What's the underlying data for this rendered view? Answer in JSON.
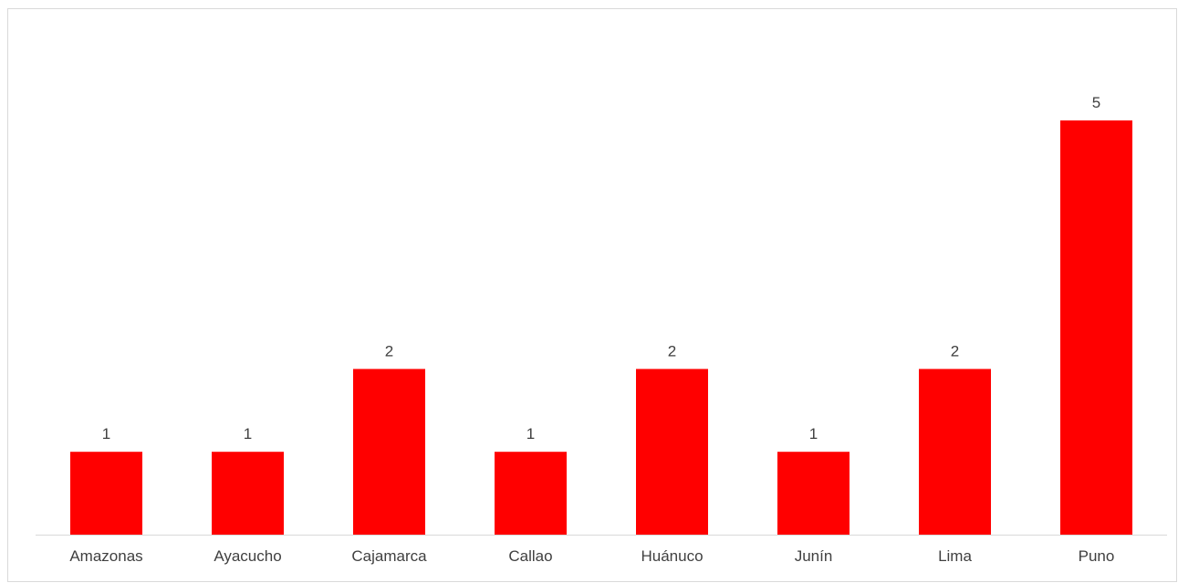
{
  "chart_data": {
    "type": "bar",
    "categories": [
      "Amazonas",
      "Ayacucho",
      "Cajamarca",
      "Callao",
      "Huánuco",
      "Junín",
      "Lima",
      "Puno"
    ],
    "values": [
      1,
      1,
      2,
      1,
      2,
      1,
      2,
      5
    ],
    "data_labels": [
      "1",
      "1",
      "2",
      "1",
      "2",
      "1",
      "2",
      "5"
    ],
    "title": "",
    "xlabel": "",
    "ylabel": "",
    "ylim": [
      0,
      5
    ],
    "grid": false,
    "legend": "none",
    "bar_color": "#ff0000",
    "axis_color": "#d9d9d9",
    "text_color": "#404040"
  }
}
